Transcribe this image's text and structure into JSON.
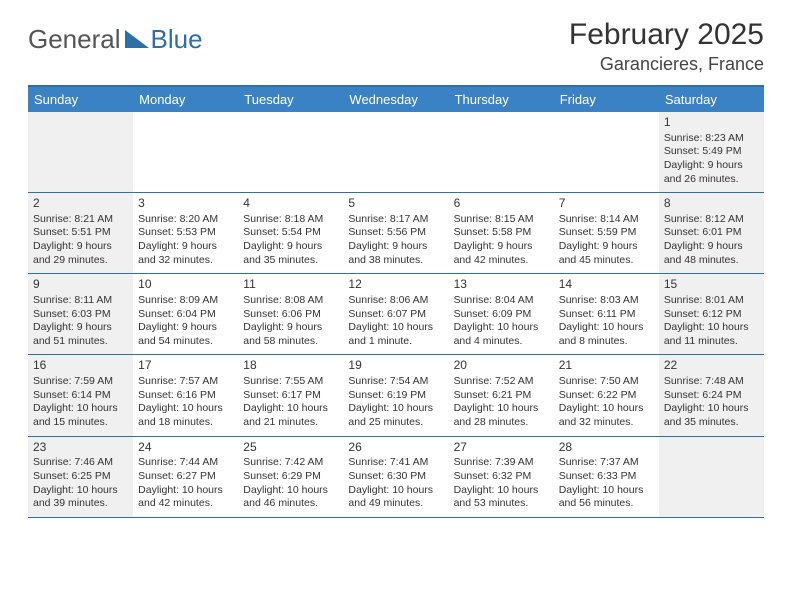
{
  "logo": {
    "text1": "General",
    "text2": "Blue"
  },
  "title": "February 2025",
  "location": "Garancieres, France",
  "dayHeaders": [
    "Sunday",
    "Monday",
    "Tuesday",
    "Wednesday",
    "Thursday",
    "Friday",
    "Saturday"
  ],
  "colors": {
    "header_bg": "#3b82c4",
    "header_text": "#ffffff",
    "border": "#2f6fa7",
    "shaded_bg": "#f0f0f0",
    "text": "#333333"
  },
  "typography": {
    "title_fontsize": 30,
    "location_fontsize": 18,
    "dayheader_fontsize": 13,
    "cell_fontsize": 10.5,
    "daynum_fontsize": 12
  },
  "calendar": {
    "type": "table",
    "columns": 7,
    "rows": 5,
    "shaded_columns": [
      0,
      6
    ]
  },
  "weeks": [
    [
      null,
      null,
      null,
      null,
      null,
      null,
      {
        "n": "1",
        "sr": "Sunrise: 8:23 AM",
        "ss": "Sunset: 5:49 PM",
        "d1": "Daylight: 9 hours",
        "d2": "and 26 minutes."
      }
    ],
    [
      {
        "n": "2",
        "sr": "Sunrise: 8:21 AM",
        "ss": "Sunset: 5:51 PM",
        "d1": "Daylight: 9 hours",
        "d2": "and 29 minutes."
      },
      {
        "n": "3",
        "sr": "Sunrise: 8:20 AM",
        "ss": "Sunset: 5:53 PM",
        "d1": "Daylight: 9 hours",
        "d2": "and 32 minutes."
      },
      {
        "n": "4",
        "sr": "Sunrise: 8:18 AM",
        "ss": "Sunset: 5:54 PM",
        "d1": "Daylight: 9 hours",
        "d2": "and 35 minutes."
      },
      {
        "n": "5",
        "sr": "Sunrise: 8:17 AM",
        "ss": "Sunset: 5:56 PM",
        "d1": "Daylight: 9 hours",
        "d2": "and 38 minutes."
      },
      {
        "n": "6",
        "sr": "Sunrise: 8:15 AM",
        "ss": "Sunset: 5:58 PM",
        "d1": "Daylight: 9 hours",
        "d2": "and 42 minutes."
      },
      {
        "n": "7",
        "sr": "Sunrise: 8:14 AM",
        "ss": "Sunset: 5:59 PM",
        "d1": "Daylight: 9 hours",
        "d2": "and 45 minutes."
      },
      {
        "n": "8",
        "sr": "Sunrise: 8:12 AM",
        "ss": "Sunset: 6:01 PM",
        "d1": "Daylight: 9 hours",
        "d2": "and 48 minutes."
      }
    ],
    [
      {
        "n": "9",
        "sr": "Sunrise: 8:11 AM",
        "ss": "Sunset: 6:03 PM",
        "d1": "Daylight: 9 hours",
        "d2": "and 51 minutes."
      },
      {
        "n": "10",
        "sr": "Sunrise: 8:09 AM",
        "ss": "Sunset: 6:04 PM",
        "d1": "Daylight: 9 hours",
        "d2": "and 54 minutes."
      },
      {
        "n": "11",
        "sr": "Sunrise: 8:08 AM",
        "ss": "Sunset: 6:06 PM",
        "d1": "Daylight: 9 hours",
        "d2": "and 58 minutes."
      },
      {
        "n": "12",
        "sr": "Sunrise: 8:06 AM",
        "ss": "Sunset: 6:07 PM",
        "d1": "Daylight: 10 hours",
        "d2": "and 1 minute."
      },
      {
        "n": "13",
        "sr": "Sunrise: 8:04 AM",
        "ss": "Sunset: 6:09 PM",
        "d1": "Daylight: 10 hours",
        "d2": "and 4 minutes."
      },
      {
        "n": "14",
        "sr": "Sunrise: 8:03 AM",
        "ss": "Sunset: 6:11 PM",
        "d1": "Daylight: 10 hours",
        "d2": "and 8 minutes."
      },
      {
        "n": "15",
        "sr": "Sunrise: 8:01 AM",
        "ss": "Sunset: 6:12 PM",
        "d1": "Daylight: 10 hours",
        "d2": "and 11 minutes."
      }
    ],
    [
      {
        "n": "16",
        "sr": "Sunrise: 7:59 AM",
        "ss": "Sunset: 6:14 PM",
        "d1": "Daylight: 10 hours",
        "d2": "and 15 minutes."
      },
      {
        "n": "17",
        "sr": "Sunrise: 7:57 AM",
        "ss": "Sunset: 6:16 PM",
        "d1": "Daylight: 10 hours",
        "d2": "and 18 minutes."
      },
      {
        "n": "18",
        "sr": "Sunrise: 7:55 AM",
        "ss": "Sunset: 6:17 PM",
        "d1": "Daylight: 10 hours",
        "d2": "and 21 minutes."
      },
      {
        "n": "19",
        "sr": "Sunrise: 7:54 AM",
        "ss": "Sunset: 6:19 PM",
        "d1": "Daylight: 10 hours",
        "d2": "and 25 minutes."
      },
      {
        "n": "20",
        "sr": "Sunrise: 7:52 AM",
        "ss": "Sunset: 6:21 PM",
        "d1": "Daylight: 10 hours",
        "d2": "and 28 minutes."
      },
      {
        "n": "21",
        "sr": "Sunrise: 7:50 AM",
        "ss": "Sunset: 6:22 PM",
        "d1": "Daylight: 10 hours",
        "d2": "and 32 minutes."
      },
      {
        "n": "22",
        "sr": "Sunrise: 7:48 AM",
        "ss": "Sunset: 6:24 PM",
        "d1": "Daylight: 10 hours",
        "d2": "and 35 minutes."
      }
    ],
    [
      {
        "n": "23",
        "sr": "Sunrise: 7:46 AM",
        "ss": "Sunset: 6:25 PM",
        "d1": "Daylight: 10 hours",
        "d2": "and 39 minutes."
      },
      {
        "n": "24",
        "sr": "Sunrise: 7:44 AM",
        "ss": "Sunset: 6:27 PM",
        "d1": "Daylight: 10 hours",
        "d2": "and 42 minutes."
      },
      {
        "n": "25",
        "sr": "Sunrise: 7:42 AM",
        "ss": "Sunset: 6:29 PM",
        "d1": "Daylight: 10 hours",
        "d2": "and 46 minutes."
      },
      {
        "n": "26",
        "sr": "Sunrise: 7:41 AM",
        "ss": "Sunset: 6:30 PM",
        "d1": "Daylight: 10 hours",
        "d2": "and 49 minutes."
      },
      {
        "n": "27",
        "sr": "Sunrise: 7:39 AM",
        "ss": "Sunset: 6:32 PM",
        "d1": "Daylight: 10 hours",
        "d2": "and 53 minutes."
      },
      {
        "n": "28",
        "sr": "Sunrise: 7:37 AM",
        "ss": "Sunset: 6:33 PM",
        "d1": "Daylight: 10 hours",
        "d2": "and 56 minutes."
      },
      null
    ]
  ]
}
